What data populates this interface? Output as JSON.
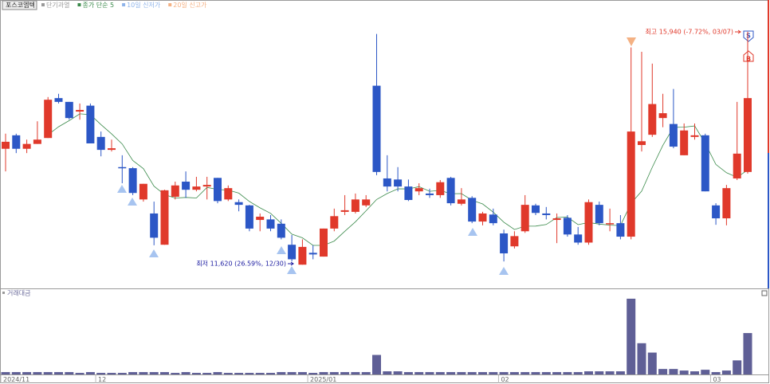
{
  "chart_data": {
    "type": "candlestick",
    "title": "포스코엠텍",
    "legend": [
      {
        "name": "단기과열",
        "color": "#9a9a9a"
      },
      {
        "name": "종가 단순 5",
        "color": "#3a8a4a"
      },
      {
        "name": "10일 신저가",
        "color": "#8fb4ea"
      },
      {
        "name": "20일 신고가",
        "color": "#f4b183"
      }
    ],
    "categories": [
      "2024/11",
      null,
      null,
      null,
      null,
      null,
      null,
      null,
      null,
      "12",
      null,
      null,
      null,
      null,
      null,
      null,
      null,
      null,
      null,
      null,
      null,
      null,
      null,
      null,
      null,
      null,
      null,
      null,
      null,
      "2025/01",
      null,
      null,
      null,
      null,
      null,
      null,
      null,
      null,
      null,
      null,
      null,
      null,
      null,
      null,
      null,
      null,
      null,
      "02",
      null,
      null,
      null,
      null,
      null,
      null,
      null,
      null,
      null,
      null,
      null,
      null,
      null,
      null,
      null,
      null,
      null,
      null,
      null,
      "03",
      null,
      null,
      null
    ],
    "open": [
      13770,
      14020,
      13770,
      13860,
      13970,
      14710,
      14640,
      14460,
      14570,
      13990,
      13750,
      13430,
      13410,
      12830,
      12570,
      11990,
      12880,
      13160,
      13010,
      13070,
      13230,
      12830,
      12780,
      12720,
      12450,
      12460,
      12380,
      11990,
      11620,
      11840,
      11770,
      12290,
      12600,
      12600,
      12720,
      14940,
      13220,
      13200,
      13070,
      12980,
      12940,
      12910,
      13230,
      12750,
      12860,
      12420,
      12550,
      12200,
      11960,
      12240,
      12720,
      12570,
      12450,
      12490,
      12180,
      12030,
      12730,
      12380,
      12390,
      12140,
      13840,
      14030,
      14340,
      14230,
      13650,
      13990,
      14020,
      12720,
      12480,
      13220,
      13340
    ],
    "high": [
      14050,
      14050,
      13940,
      14280,
      14730,
      14790,
      14640,
      14610,
      14610,
      14090,
      13940,
      13650,
      13430,
      13120,
      12790,
      13010,
      13160,
      13350,
      13250,
      13250,
      13230,
      13090,
      12830,
      12730,
      12570,
      12540,
      12460,
      12170,
      12090,
      11980,
      12290,
      12660,
      12910,
      12940,
      12910,
      15900,
      13650,
      13430,
      13200,
      13130,
      13030,
      13190,
      13250,
      13040,
      12890,
      12600,
      12660,
      12270,
      12240,
      12910,
      12750,
      12690,
      12570,
      12540,
      12320,
      12830,
      12790,
      12660,
      12540,
      15650,
      15570,
      15350,
      14790,
      14880,
      14240,
      14240,
      14050,
      12760,
      13100,
      14640,
      15940
    ],
    "low": [
      13350,
      13690,
      13690,
      13860,
      13970,
      14610,
      14310,
      14310,
      13870,
      13630,
      13720,
      13130,
      12910,
      12790,
      11980,
      11990,
      12830,
      12860,
      12980,
      12830,
      12760,
      12800,
      12610,
      12240,
      12240,
      12240,
      12090,
      11680,
      11620,
      11720,
      11770,
      12240,
      12540,
      12570,
      12690,
      13280,
      12980,
      12980,
      12800,
      12910,
      12860,
      12860,
      12720,
      12720,
      12390,
      12350,
      12350,
      11680,
      11920,
      12210,
      12540,
      12460,
      12020,
      12140,
      11990,
      11990,
      12350,
      12240,
      12090,
      12090,
      13720,
      13990,
      14170,
      13780,
      13650,
      13940,
      12980,
      12360,
      12350,
      13190,
      13310
    ],
    "close": [
      13900,
      13770,
      13860,
      13940,
      14680,
      14640,
      14340,
      14490,
      13870,
      13750,
      13780,
      13410,
      12950,
      13120,
      12120,
      13000,
      13090,
      13010,
      13070,
      13100,
      12800,
      13040,
      12730,
      12290,
      12510,
      12290,
      12120,
      11720,
      11950,
      11810,
      12290,
      12520,
      12630,
      12830,
      12830,
      13340,
      13070,
      13070,
      12820,
      13040,
      12910,
      13150,
      12760,
      12830,
      12420,
      12570,
      12390,
      11830,
      12150,
      12730,
      12580,
      12540,
      12480,
      12180,
      12030,
      12780,
      12390,
      12390,
      12140,
      14090,
      13910,
      14600,
      14430,
      13810,
      14110,
      14020,
      12980,
      12480,
      13040,
      13680,
      14710
    ],
    "ylim": [
      11180,
      16530
    ],
    "up_color": "#e0392b",
    "down_color": "#2c57c6",
    "max_label": "최고 15,940 (-7.72%, 03/07)",
    "min_label": "최저 11,620 (26.59%, 12/30)",
    "volume": {
      "title": "거래대금",
      "color": "#5f5f96",
      "ylim": [
        0,
        100
      ],
      "values": [
        3,
        3,
        3,
        3,
        3,
        3,
        3,
        2,
        3,
        2,
        2,
        2,
        3,
        3,
        3,
        3,
        2,
        3,
        2,
        2,
        3,
        2,
        2,
        2,
        2,
        2,
        3,
        3,
        3,
        2,
        3,
        3,
        3,
        3,
        3,
        25,
        4,
        4,
        3,
        3,
        3,
        3,
        3,
        3,
        3,
        3,
        3,
        3,
        3,
        3,
        3,
        3,
        3,
        3,
        3,
        4,
        4,
        4,
        4,
        97,
        40,
        28,
        7,
        7,
        5,
        4,
        6,
        3,
        5,
        18,
        53
      ]
    }
  }
}
